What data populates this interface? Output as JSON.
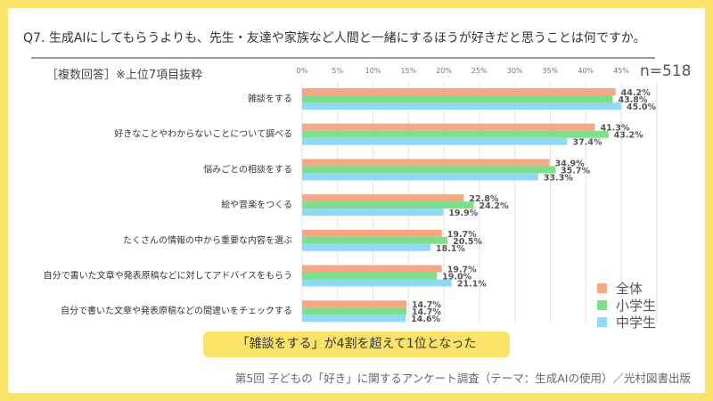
{
  "title": "Q7. 生成AIにしてもらうよりも、先生・友達や家族など人間と一緒にするほうが好きだと思うことは何ですか。",
  "subtitle": "［複数回答］※上位7項目抜粋",
  "sample": "n=518",
  "callout": "「雑談をする」が4割を超えて1位となった",
  "footer": "第5回 子どもの「好き」に関するアンケート調査（テーマ：生成AIの使用）／光村図書出版",
  "chart_data": {
    "type": "bar",
    "orientation": "horizontal",
    "categories": [
      "雑談をする",
      "好きなことやわからないことについて調べる",
      "悩みごとの相談をする",
      "絵や音楽をつくる",
      "たくさんの情報の中から重要な内容を選ぶ",
      "自分で書いた文章や発表原稿などに対してアドバイスをもらう",
      "自分で書いた文章や発表原稿などの間違いをチェックする"
    ],
    "series": [
      {
        "name": "全体",
        "color": "#f4a984",
        "values": [
          44.2,
          41.3,
          34.9,
          22.8,
          19.7,
          19.7,
          14.7
        ]
      },
      {
        "name": "小学生",
        "color": "#7edf8a",
        "values": [
          43.8,
          43.2,
          35.7,
          24.2,
          20.5,
          19.0,
          14.7
        ]
      },
      {
        "name": "中学生",
        "color": "#8fd9f5",
        "values": [
          45.0,
          37.4,
          33.3,
          19.9,
          18.1,
          21.1,
          14.6
        ]
      }
    ],
    "xticks": [
      "0%",
      "5%",
      "10%",
      "15%",
      "20%",
      "25%",
      "30%",
      "35%",
      "40%",
      "45%"
    ],
    "xlim": [
      0,
      50
    ],
    "grid": true,
    "legend": "bottom-right"
  }
}
